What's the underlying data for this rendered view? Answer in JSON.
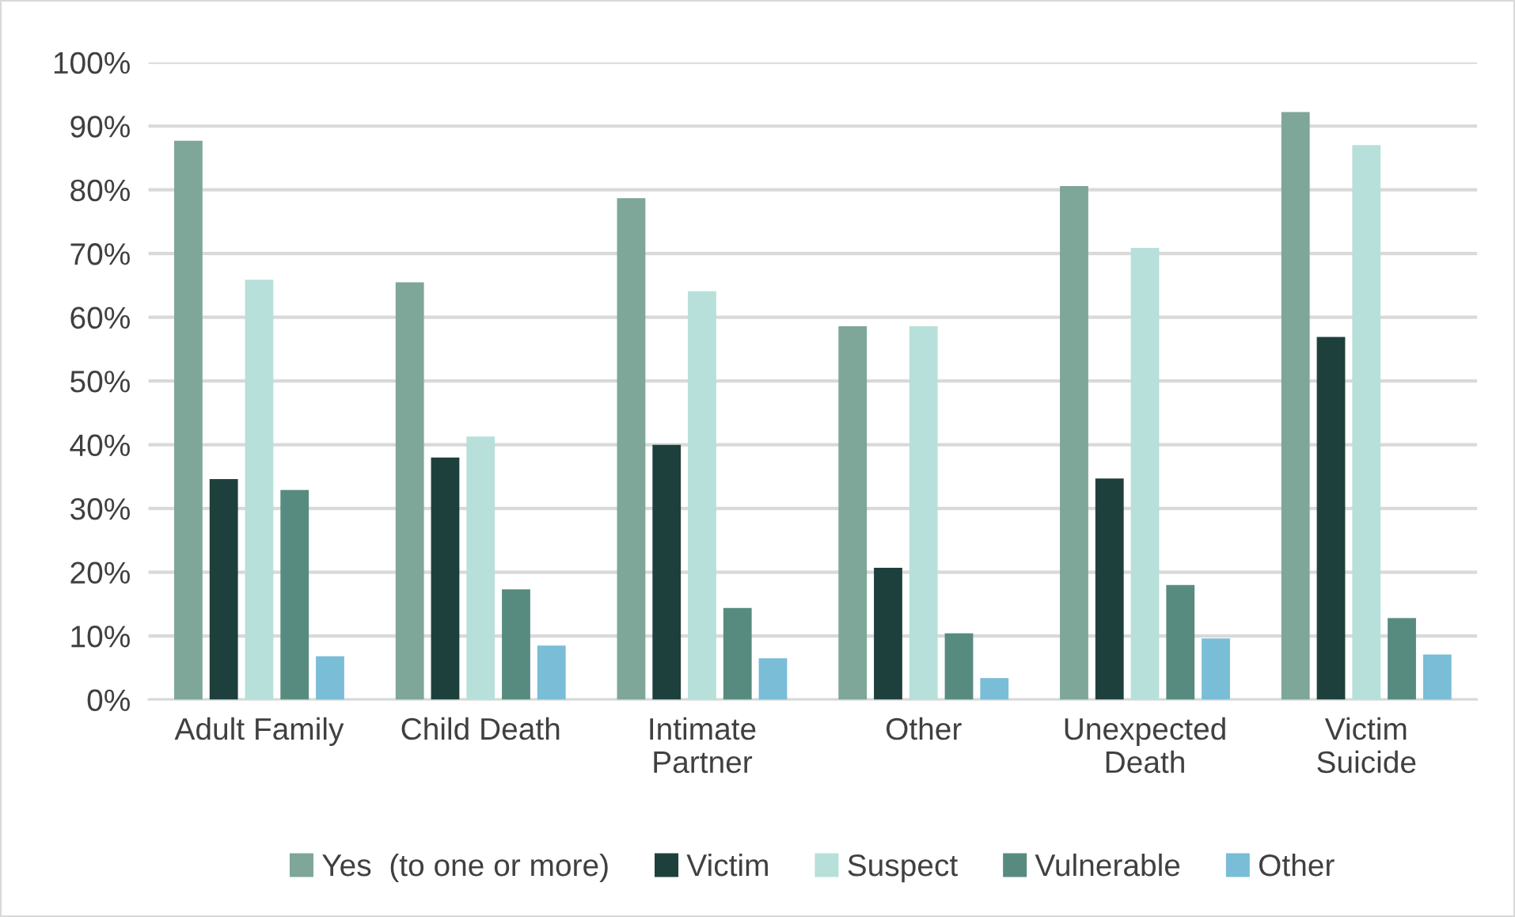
{
  "chart_data": {
    "type": "bar",
    "categories": [
      "Adult Family",
      "Child Death",
      "Intimate\nPartner",
      "Other",
      "Unexpected\nDeath",
      "Victim\nSuicide"
    ],
    "series": [
      {
        "name": "Yes  (to one or more)",
        "color": "#7ea699",
        "values": [
          87.7,
          65.5,
          78.7,
          58.6,
          80.6,
          92.2
        ]
      },
      {
        "name": "Victim",
        "color": "#1e403c",
        "values": [
          34.6,
          38.0,
          40.0,
          20.7,
          34.7,
          56.9
        ]
      },
      {
        "name": "Suspect",
        "color": "#b7e0da",
        "values": [
          65.9,
          41.3,
          64.1,
          58.6,
          70.9,
          87.0
        ]
      },
      {
        "name": "Vulnerable",
        "color": "#588b80",
        "values": [
          32.9,
          17.3,
          14.4,
          10.4,
          18.0,
          12.8
        ]
      },
      {
        "name": "Other",
        "color": "#7abdd7",
        "values": [
          6.8,
          8.5,
          6.5,
          3.4,
          9.6,
          7.1
        ]
      }
    ],
    "ylim": [
      0,
      100
    ],
    "yticks": [
      {
        "value": 0,
        "label": "0%"
      },
      {
        "value": 10,
        "label": "10%"
      },
      {
        "value": 20,
        "label": "20%"
      },
      {
        "value": 30,
        "label": "30%"
      },
      {
        "value": 40,
        "label": "40%"
      },
      {
        "value": 50,
        "label": "50%"
      },
      {
        "value": 60,
        "label": "60%"
      },
      {
        "value": 70,
        "label": "70%"
      },
      {
        "value": 80,
        "label": "80%"
      },
      {
        "value": 90,
        "label": "90%"
      },
      {
        "value": 100,
        "label": "100%"
      }
    ],
    "grid": "y",
    "legend": "bottom"
  }
}
